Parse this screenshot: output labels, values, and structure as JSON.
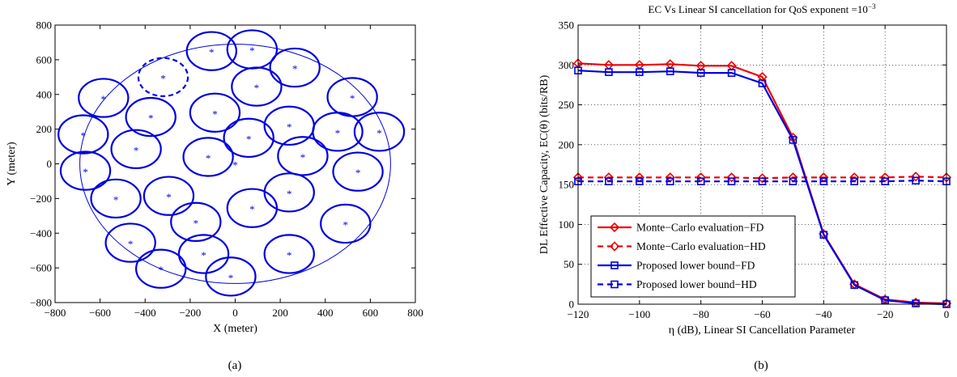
{
  "chart_data": [
    {
      "type": "scatter",
      "panel_label": "(a)",
      "xlabel": "X (meter)",
      "ylabel": "Y (meter)",
      "xlim": [
        -800,
        800
      ],
      "ylim": [
        -800,
        800
      ],
      "xticks": [
        -800,
        -600,
        -400,
        -200,
        0,
        200,
        400,
        600,
        800
      ],
      "yticks": [
        -800,
        -600,
        -400,
        -200,
        0,
        200,
        400,
        600,
        800
      ],
      "grid": false,
      "colors": {
        "main": "#0000e0"
      },
      "macro_cell": {
        "center": [
          0,
          0
        ],
        "radius": 690
      },
      "base_station": [
        0,
        0
      ],
      "small_cell_radius": 110,
      "small_cells": [
        {
          "x": -105,
          "y": 650,
          "style": "solid"
        },
        {
          "x": 75,
          "y": 660,
          "style": "solid"
        },
        {
          "x": -320,
          "y": 500,
          "style": "dashed"
        },
        {
          "x": 265,
          "y": 555,
          "style": "solid"
        },
        {
          "x": 95,
          "y": 445,
          "style": "solid"
        },
        {
          "x": -585,
          "y": 380,
          "style": "solid"
        },
        {
          "x": 520,
          "y": 385,
          "style": "solid"
        },
        {
          "x": -375,
          "y": 270,
          "style": "solid"
        },
        {
          "x": -90,
          "y": 295,
          "style": "solid"
        },
        {
          "x": 240,
          "y": 220,
          "style": "solid"
        },
        {
          "x": -675,
          "y": 170,
          "style": "solid"
        },
        {
          "x": 60,
          "y": 150,
          "style": "solid"
        },
        {
          "x": 455,
          "y": 185,
          "style": "solid"
        },
        {
          "x": 640,
          "y": 185,
          "style": "solid"
        },
        {
          "x": -440,
          "y": 85,
          "style": "solid"
        },
        {
          "x": -120,
          "y": 40,
          "style": "solid"
        },
        {
          "x": 300,
          "y": 45,
          "style": "solid"
        },
        {
          "x": -665,
          "y": -40,
          "style": "solid"
        },
        {
          "x": 545,
          "y": -45,
          "style": "solid"
        },
        {
          "x": -530,
          "y": -200,
          "style": "solid"
        },
        {
          "x": -295,
          "y": -185,
          "style": "solid"
        },
        {
          "x": 240,
          "y": -165,
          "style": "solid"
        },
        {
          "x": 75,
          "y": -255,
          "style": "solid"
        },
        {
          "x": -175,
          "y": -335,
          "style": "solid"
        },
        {
          "x": 490,
          "y": -345,
          "style": "solid"
        },
        {
          "x": -465,
          "y": -455,
          "style": "solid"
        },
        {
          "x": -140,
          "y": -520,
          "style": "solid"
        },
        {
          "x": 240,
          "y": -520,
          "style": "solid"
        },
        {
          "x": -330,
          "y": -605,
          "style": "solid"
        },
        {
          "x": -20,
          "y": -650,
          "style": "solid"
        }
      ]
    },
    {
      "type": "line",
      "panel_label": "(b)",
      "title": "EC Vs Linear SI cancellation for QoS exponent =10",
      "title_superscript": "−3",
      "xlabel": "η (dB), Linear SI Cancellation Parameter",
      "ylabel": "DL Effective Capacity, EC(θ) (bits/RB)",
      "xlim": [
        -120,
        0
      ],
      "ylim": [
        0,
        350
      ],
      "xticks": [
        -120,
        -100,
        -80,
        -60,
        -40,
        -20,
        0
      ],
      "yticks": [
        0,
        50,
        100,
        150,
        200,
        250,
        300,
        350
      ],
      "grid": true,
      "legend_position": "bottom-left",
      "x": [
        -120,
        -110,
        -100,
        -90,
        -80,
        -70,
        -60,
        -50,
        -40,
        -30,
        -20,
        -10,
        0
      ],
      "series": [
        {
          "name": "Monte−Carlo evaluation−FD",
          "color": "#ee0000",
          "dash": "solid",
          "marker": "diamond",
          "values": [
            302,
            300,
            300,
            301,
            299,
            299,
            285,
            209,
            88,
            25,
            6,
            2,
            1
          ]
        },
        {
          "name": "Monte−Carlo evaluation−HD",
          "color": "#ee0000",
          "dash": "dashed",
          "marker": "diamond",
          "values": [
            159,
            159,
            159,
            159,
            159,
            159,
            158,
            159,
            159,
            159,
            159,
            160,
            159
          ]
        },
        {
          "name": "Proposed lower bound−FD",
          "color": "#0000dd",
          "dash": "solid",
          "marker": "square",
          "values": [
            293,
            291,
            291,
            292,
            290,
            290,
            277,
            206,
            87,
            24,
            5,
            1,
            0
          ]
        },
        {
          "name": "Proposed lower bound−HD",
          "color": "#0000dd",
          "dash": "dashed",
          "marker": "square",
          "values": [
            154,
            154,
            154,
            154,
            154,
            154,
            154,
            154,
            154,
            154,
            154,
            155,
            154
          ]
        }
      ]
    }
  ]
}
